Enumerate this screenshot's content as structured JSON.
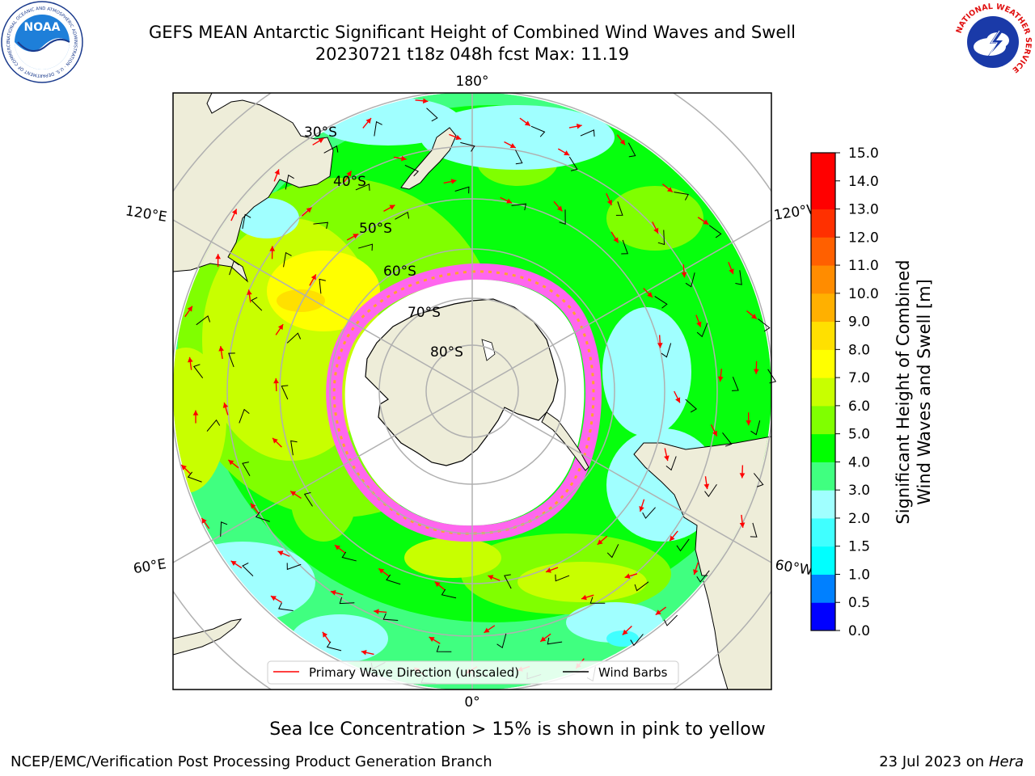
{
  "title": {
    "line1": "GEFS MEAN Antarctic Significant Height of Combined Wind Waves and Swell",
    "line2": "20230721 t18z 048h fcst   Max: 11.19"
  },
  "logos": {
    "left": "NOAA",
    "left_ring": "NATIONAL OCEANIC AND ATMOSPHERIC ADMINISTRATION · U.S. DEPARTMENT OF COMMERCE",
    "right_ring": "NATIONAL WEATHER SERVICE"
  },
  "map": {
    "projection": "south-polar-stereographic",
    "longitude_labels": [
      "180°",
      "120°E",
      "120°W",
      "60°E",
      "60°W",
      "0°"
    ],
    "latitude_labels": [
      "30°S",
      "40°S",
      "50°S",
      "60°S",
      "70°S",
      "80°S"
    ],
    "legend": {
      "wave_direction": "Primary Wave Direction (unscaled)",
      "wind_barbs": "Wind Barbs"
    }
  },
  "colorbar": {
    "label_line1": "Significant Height of Combined",
    "label_line2": "Wind Waves and Swell [m]",
    "ticks": [
      "0.0",
      "0.5",
      "1.0",
      "1.5",
      "2.0",
      "3.0",
      "4.0",
      "5.0",
      "6.0",
      "7.0",
      "8.0",
      "9.0",
      "10.0",
      "11.0",
      "12.0",
      "13.0",
      "14.0",
      "15.0"
    ],
    "colors": [
      "#0000ff",
      "#0080ff",
      "#00ffff",
      "#40ffff",
      "#a0ffff",
      "#40ff80",
      "#00ff00",
      "#80ff00",
      "#c8ff00",
      "#ffff00",
      "#ffe000",
      "#ffb000",
      "#ff8c00",
      "#ff6000",
      "#ff3000",
      "#ff0000",
      "#ff0000"
    ]
  },
  "footer": {
    "sea_ice_note": "Sea Ice Concentration > 15% is shown in pink to yellow",
    "credit": "NCEP/EMC/Verification Post Processing Product Generation Branch",
    "date": "23 Jul 2023 on",
    "system": "Hera"
  }
}
